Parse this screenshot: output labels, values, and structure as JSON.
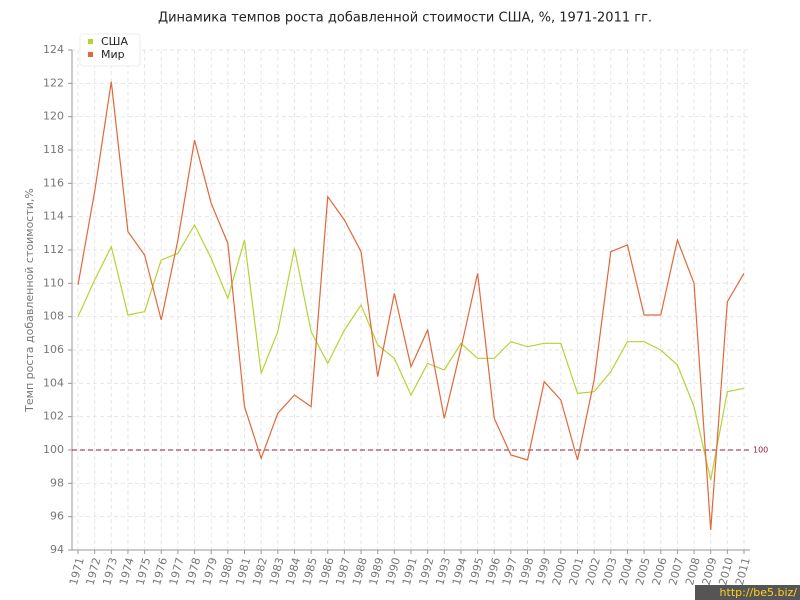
{
  "chart_data": {
    "type": "line",
    "title": "Динамика темпов роста добавленной стоимости США, %, 1971-2011 гг.",
    "y_label": "Темп роста добавленной стоимости,%",
    "x": [
      1971,
      1972,
      1973,
      1974,
      1975,
      1976,
      1977,
      1978,
      1979,
      1980,
      1981,
      1982,
      1983,
      1984,
      1985,
      1986,
      1987,
      1988,
      1989,
      1990,
      1991,
      1992,
      1993,
      1994,
      1995,
      1996,
      1997,
      1998,
      1999,
      2000,
      2001,
      2002,
      2003,
      2004,
      2005,
      2006,
      2007,
      2008,
      2009,
      2010,
      2011
    ],
    "xlim": [
      1971,
      2011
    ],
    "series": [
      {
        "name": "США",
        "color": "#b5d334",
        "values": [
          108.0,
          110.2,
          112.2,
          108.1,
          108.3,
          111.4,
          111.8,
          113.5,
          111.5,
          109.1,
          112.6,
          104.6,
          107.1,
          112.1,
          107.1,
          105.2,
          107.2,
          108.7,
          106.3,
          105.5,
          103.3,
          105.2,
          104.8,
          106.4,
          105.5,
          105.5,
          106.5,
          106.2,
          106.4,
          106.4,
          103.4,
          103.5,
          104.7,
          106.5,
          106.5,
          106.0,
          105.1,
          102.6,
          98.2,
          103.5,
          103.7
        ]
      },
      {
        "name": "Мир",
        "color": "#e0683a",
        "values": [
          109.9,
          115.5,
          122.1,
          113.1,
          111.7,
          107.8,
          112.6,
          118.6,
          114.8,
          112.4,
          102.6,
          99.5,
          102.2,
          103.3,
          102.6,
          115.2,
          113.8,
          111.9,
          104.4,
          109.4,
          105.0,
          107.2,
          101.9,
          106.1,
          110.6,
          101.9,
          99.7,
          99.4,
          104.1,
          103.0,
          99.4,
          104.2,
          111.9,
          112.3,
          108.1,
          108.1,
          112.6,
          110.0,
          95.2,
          108.9,
          110.6
        ]
      }
    ],
    "ylim": [
      94,
      124
    ],
    "yticks": [
      94,
      96,
      98,
      100,
      102,
      104,
      106,
      108,
      110,
      112,
      114,
      116,
      118,
      120,
      122,
      124
    ],
    "grid": true,
    "legend": "top-left",
    "reference_line": 100
  },
  "watermark": "http://be5.biz/"
}
